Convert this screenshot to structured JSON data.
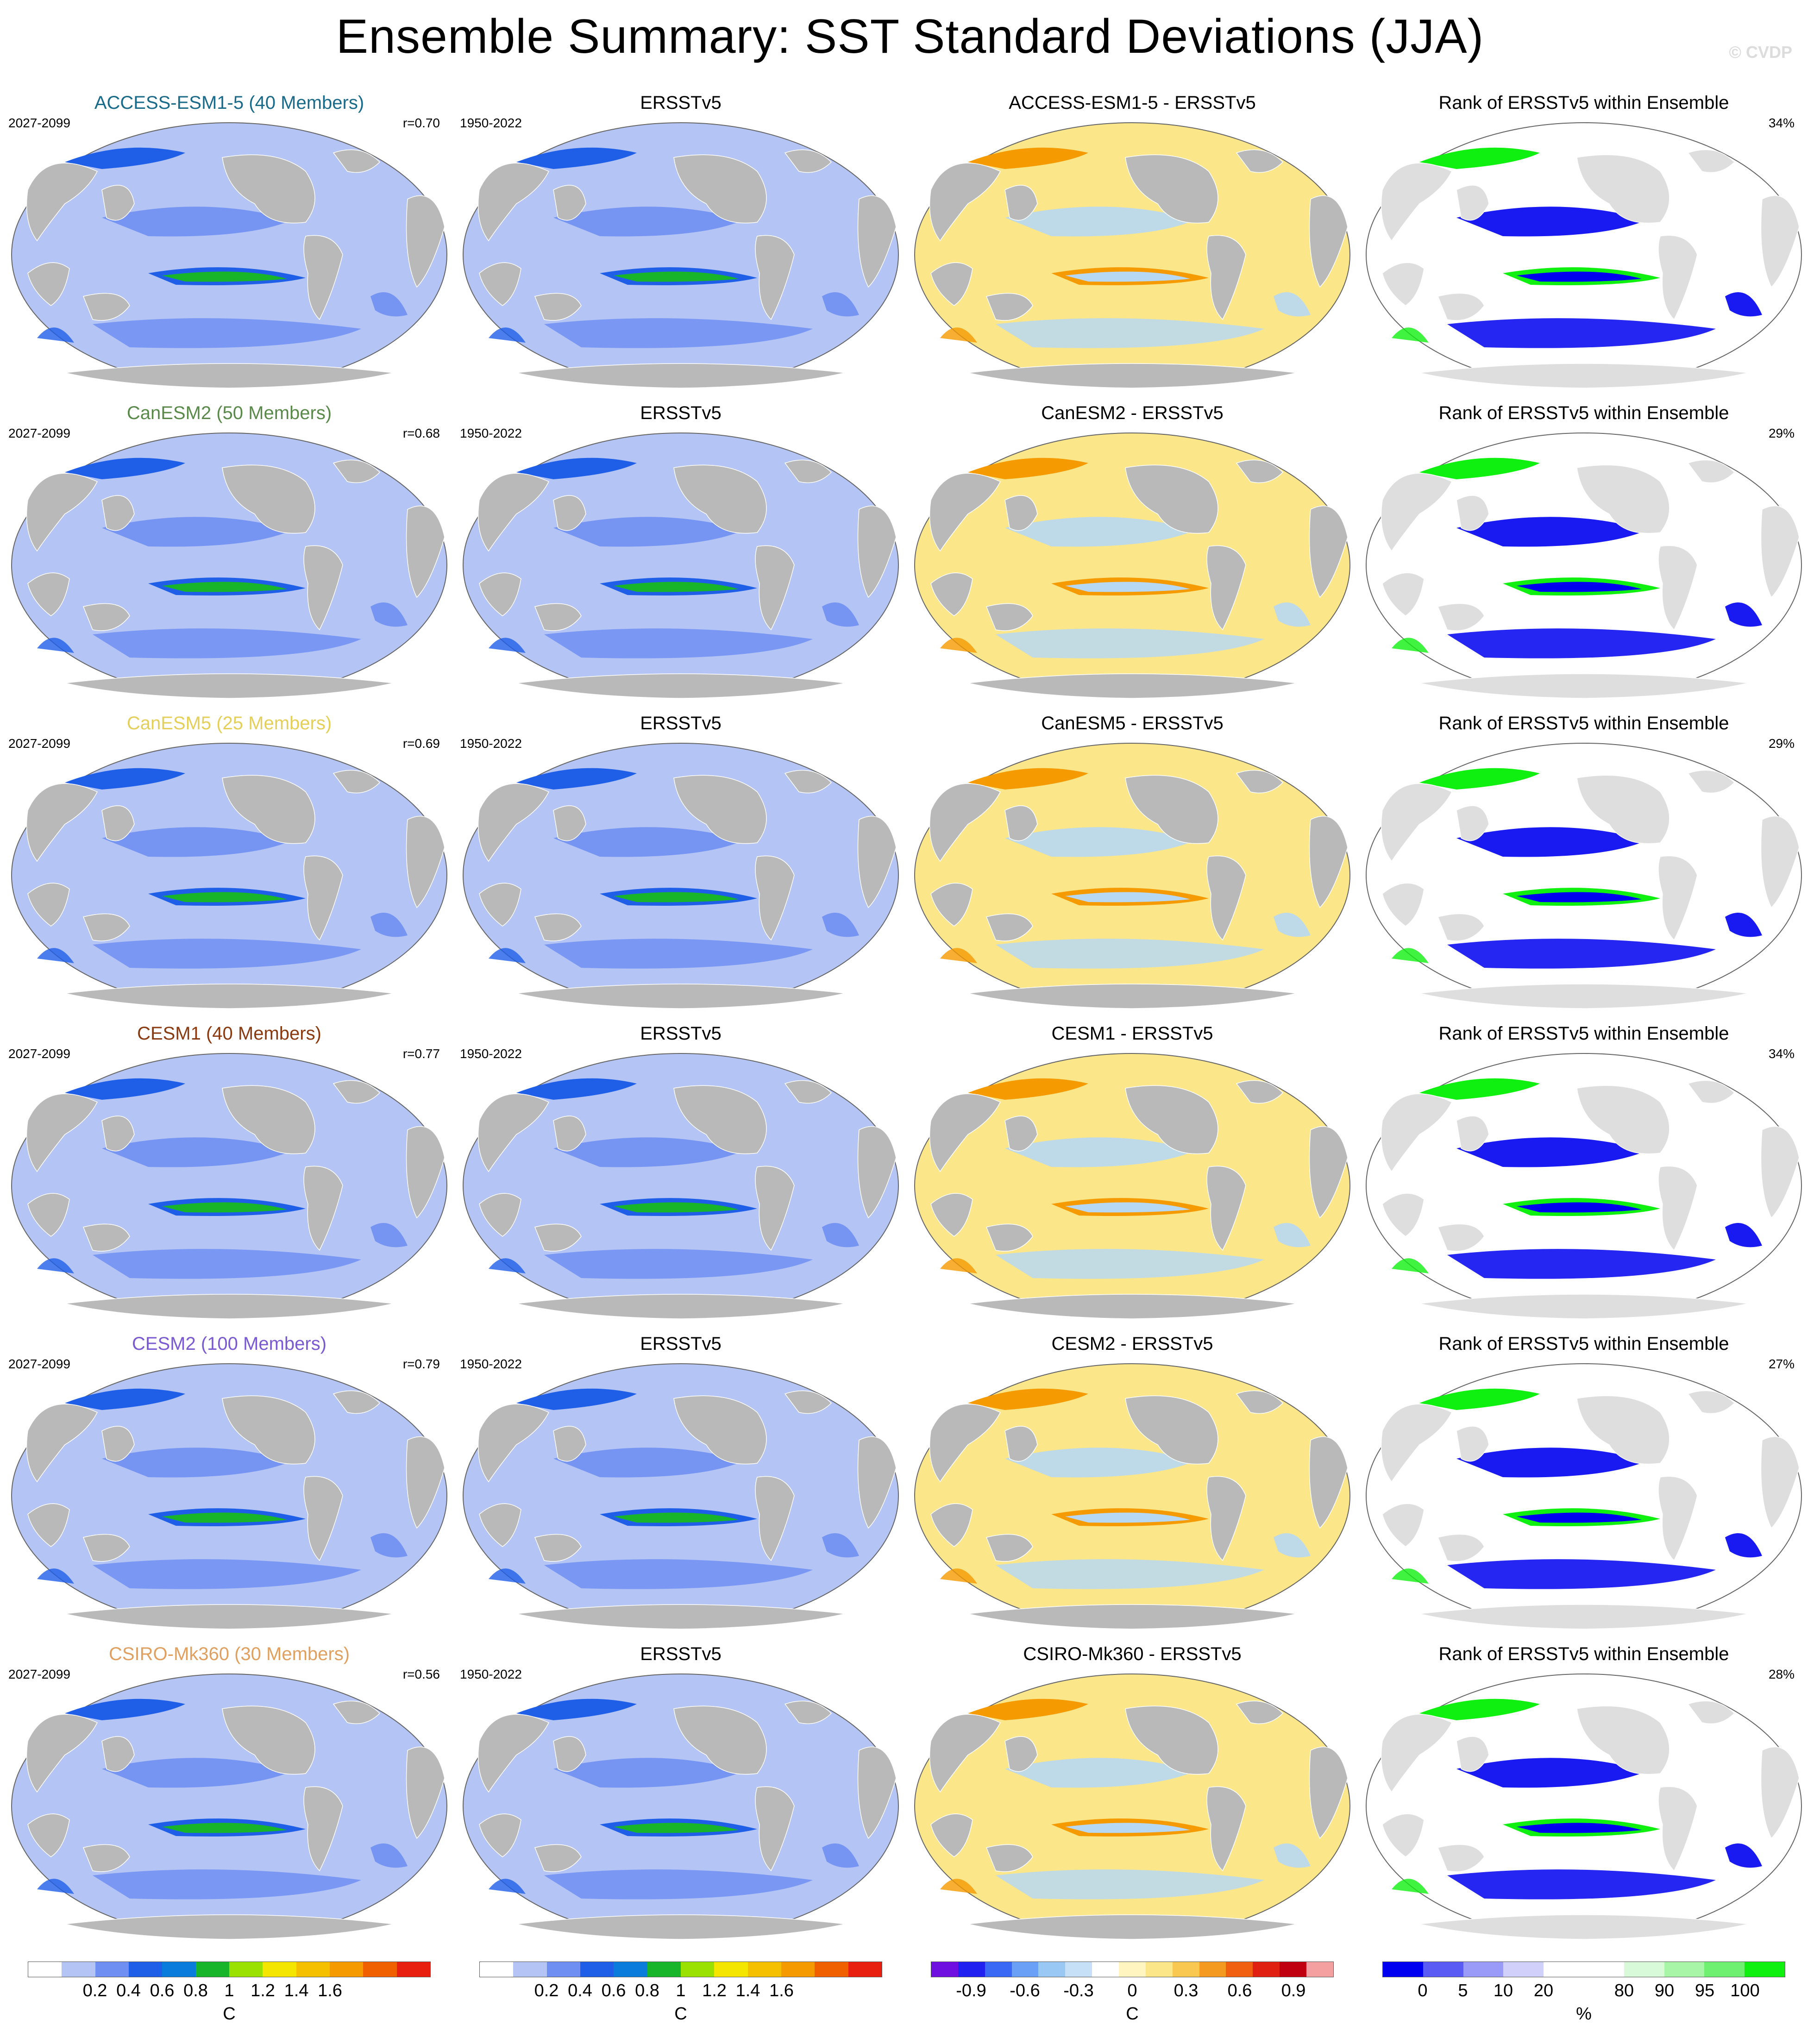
{
  "title": "Ensemble Summary: SST Standard Deviations (JJA)",
  "copyright": "© CVDP",
  "colors": {
    "land": "#b9b9b9",
    "land_light": "#dedede",
    "ocean_base": "#b3c4f5",
    "ocean_mid": "#6f8ff2",
    "ocean_strong": "#1f5fe8",
    "green": "#18b52a",
    "yellow": "#f5e600",
    "orange": "#f59a00",
    "red": "#e81e0e",
    "diff_warm": "#fbe78a",
    "diff_cool": "#b7d8f2",
    "rank_low": "#0000f0",
    "rank_high": "#10f010"
  },
  "column_titles": {
    "obs": "ERSSTv5",
    "rank": "Rank of ERSSTv5 within Ensemble"
  },
  "obs_years": "1950-2022",
  "rows": [
    {
      "model_title": "ACCESS-ESM1-5 (40 Members)",
      "title_color": "#1a6a8a",
      "years": "2027-2099",
      "r": "r=0.70",
      "diff_title": "ACCESS-ESM1-5 - ERSSTv5",
      "rank_pct": "34%"
    },
    {
      "model_title": "CanESM2 (50 Members)",
      "title_color": "#5a8a4a",
      "years": "2027-2099",
      "r": "r=0.68",
      "diff_title": "CanESM2 - ERSSTv5",
      "rank_pct": "29%"
    },
    {
      "model_title": "CanESM5 (25 Members)",
      "title_color": "#e4cf5a",
      "years": "2027-2099",
      "r": "r=0.69",
      "diff_title": "CanESM5 - ERSSTv5",
      "rank_pct": "29%"
    },
    {
      "model_title": "CESM1 (40 Members)",
      "title_color": "#8a3a10",
      "years": "2027-2099",
      "r": "r=0.77",
      "diff_title": "CESM1 - ERSSTv5",
      "rank_pct": "34%"
    },
    {
      "model_title": "CESM2 (100 Members)",
      "title_color": "#7a5ad0",
      "years": "2027-2099",
      "r": "r=0.79",
      "diff_title": "CESM2 - ERSSTv5",
      "rank_pct": "27%"
    },
    {
      "model_title": "CSIRO-Mk360 (30 Members)",
      "title_color": "#e0a060",
      "years": "2027-2099",
      "r": "r=0.56",
      "diff_title": "CSIRO-Mk360 - ERSSTv5",
      "rank_pct": "28%"
    }
  ],
  "colorbars": [
    {
      "name": "model-std",
      "unit": "C",
      "colors": [
        "#ffffff",
        "#b3c4f5",
        "#6f8ff2",
        "#1f5fe8",
        "#0a7ddc",
        "#18b52a",
        "#9ae000",
        "#f5e600",
        "#f5c000",
        "#f59a00",
        "#f06000",
        "#e81e0e"
      ],
      "ticks": [
        "0.2",
        "0.4",
        "0.6",
        "0.8",
        "1",
        "1.2",
        "1.4",
        "1.6"
      ]
    },
    {
      "name": "obs-std",
      "unit": "C",
      "colors": [
        "#ffffff",
        "#b3c4f5",
        "#6f8ff2",
        "#1f5fe8",
        "#0a7ddc",
        "#18b52a",
        "#9ae000",
        "#f5e600",
        "#f5c000",
        "#f59a00",
        "#f06000",
        "#e81e0e"
      ],
      "ticks": [
        "0.2",
        "0.4",
        "0.6",
        "0.8",
        "1",
        "1.2",
        "1.4",
        "1.6"
      ]
    },
    {
      "name": "difference",
      "unit": "C",
      "colors": [
        "#7010e0",
        "#2020f0",
        "#3a6af5",
        "#6aa0f5",
        "#9ac8f5",
        "#c6e0f8",
        "#ffffff",
        "#fff5c0",
        "#fbe78a",
        "#f8c850",
        "#f59a20",
        "#f06010",
        "#e02010",
        "#c00010",
        "#f5a0a0"
      ],
      "ticks": [
        "-0.9",
        "-0.6",
        "-0.3",
        "0",
        "0.3",
        "0.6",
        "0.9"
      ]
    },
    {
      "name": "rank",
      "unit": "%",
      "colors": [
        "#0000f0",
        "#5a5af5",
        "#9a9af8",
        "#d0d0fa",
        "#ffffff",
        "#ffffff",
        "#d8fad8",
        "#a8f5a8",
        "#70f070",
        "#10f010"
      ],
      "ticks": [
        "0",
        "5",
        "10",
        "20",
        "80",
        "90",
        "95",
        "100"
      ]
    }
  ]
}
